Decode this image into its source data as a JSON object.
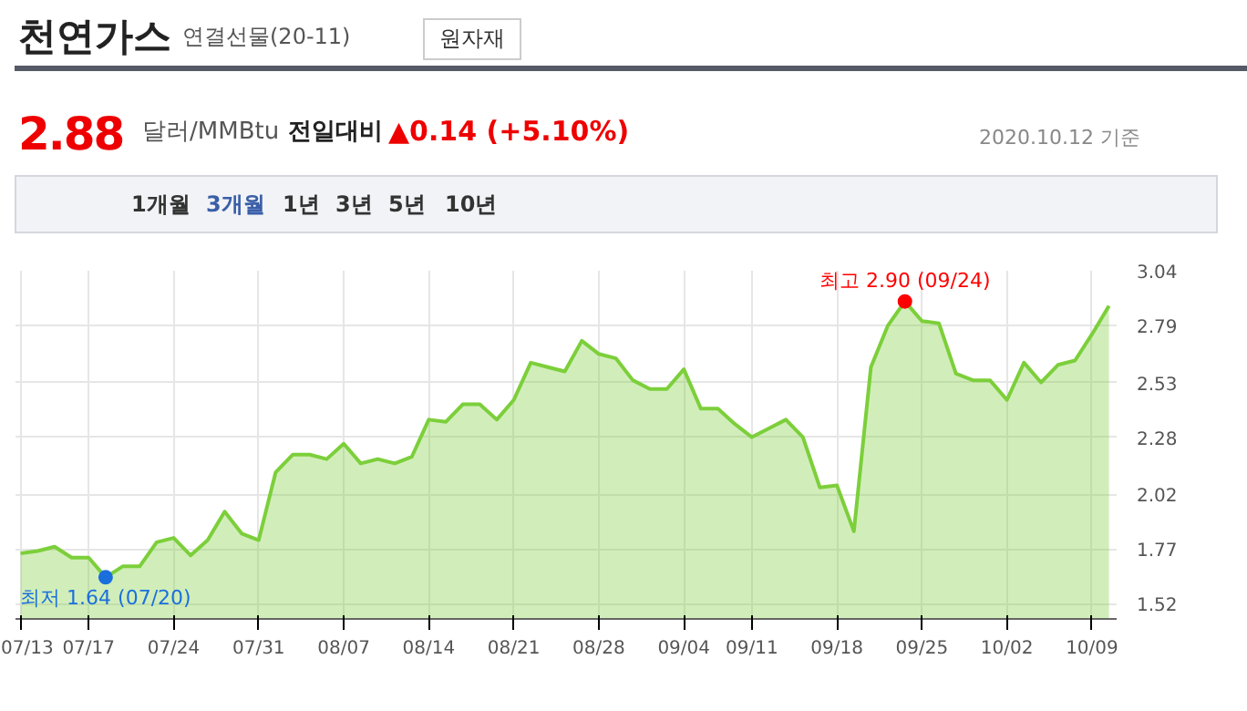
{
  "chart_data": {
    "type": "area",
    "title": "천연가스",
    "subtitle": "연결선물(20-11)",
    "categories": [
      "07/13",
      null,
      null,
      null,
      "07/17",
      null,
      null,
      null,
      null,
      "07/24",
      null,
      null,
      null,
      null,
      "07/31",
      null,
      null,
      null,
      null,
      "08/07",
      null,
      null,
      null,
      null,
      "08/14",
      null,
      null,
      null,
      null,
      "08/21",
      null,
      null,
      null,
      null,
      "08/28",
      null,
      null,
      null,
      null,
      "09/04",
      null,
      null,
      null,
      "09/11",
      null,
      null,
      null,
      null,
      "09/18",
      null,
      null,
      null,
      null,
      "09/25",
      null,
      null,
      null,
      null,
      "10/02",
      null,
      null,
      null,
      null,
      "10/09",
      null
    ],
    "series": [
      {
        "color": "#7ccf3a",
        "values": [
          1.75,
          1.76,
          1.78,
          1.73,
          1.73,
          1.64,
          1.69,
          1.69,
          1.8,
          1.82,
          1.74,
          1.81,
          1.94,
          1.84,
          1.81,
          2.12,
          2.2,
          2.2,
          2.18,
          2.25,
          2.16,
          2.18,
          2.16,
          2.19,
          2.36,
          2.35,
          2.43,
          2.43,
          2.36,
          2.45,
          2.62,
          2.6,
          2.58,
          2.72,
          2.66,
          2.64,
          2.54,
          2.5,
          2.5,
          2.59,
          2.41,
          2.41,
          2.34,
          2.28,
          2.32,
          2.36,
          2.28,
          2.05,
          2.06,
          1.85,
          2.6,
          2.79,
          2.9,
          2.81,
          2.8,
          2.57,
          2.54,
          2.54,
          2.45,
          2.62,
          2.53,
          2.61,
          2.63,
          2.75,
          2.88
        ]
      }
    ],
    "ylim": [
      1.45,
      3.04
    ],
    "yticks": [
      1.52,
      1.77,
      2.02,
      2.28,
      2.53,
      2.79,
      3.04
    ],
    "grid": true,
    "annotations": [
      {
        "text": "최고 2.90 (09/24)",
        "y": 2.9
      },
      {
        "text": "최저 1.64 (07/20)",
        "y": 1.64
      },
      "원자재",
      "2.88",
      "달러/MMBtu",
      "전일대비",
      "▲0.14 (+5.10%)",
      "2020.10.12 기준",
      "1개월",
      "3개월",
      "1년",
      "3년",
      "5년",
      "10년"
    ]
  }
}
